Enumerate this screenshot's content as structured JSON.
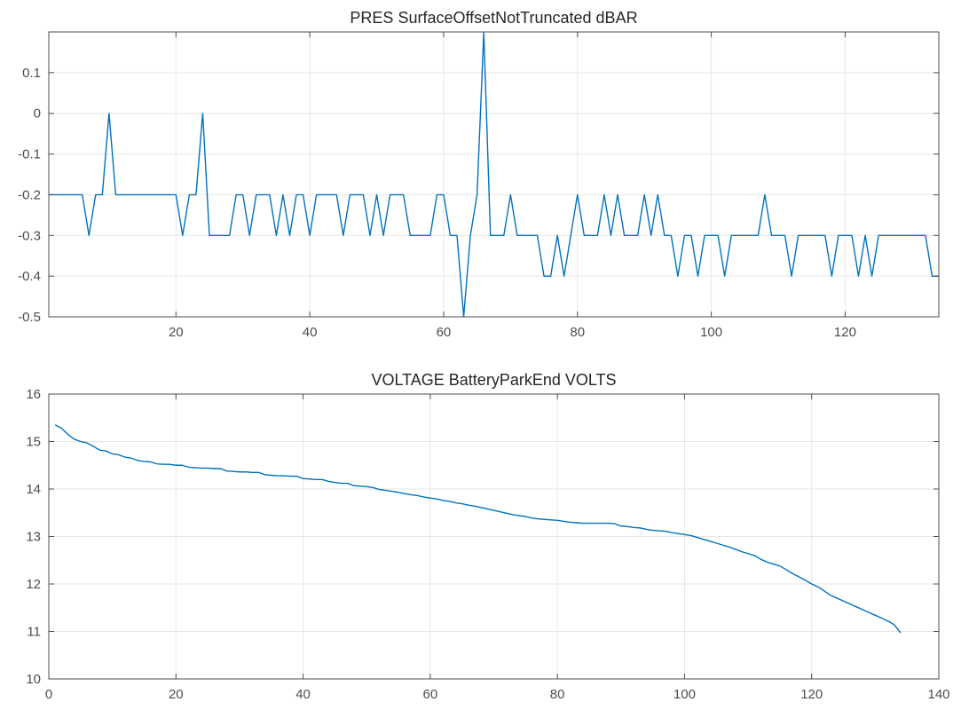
{
  "chart_data": [
    {
      "type": "line",
      "title": "PRES SurfaceOffsetNotTruncated dBAR",
      "xlabel": "",
      "ylabel": "",
      "xlim": [
        1,
        134
      ],
      "ylim": [
        -0.5,
        0.2
      ],
      "xticks": [
        20,
        40,
        60,
        80,
        100,
        120
      ],
      "xtick_labels": [
        "20",
        "40",
        "60",
        "80",
        "100",
        "120"
      ],
      "yticks": [
        -0.5,
        -0.4,
        -0.3,
        -0.2,
        -0.1,
        0,
        0.1
      ],
      "ytick_labels": [
        "-0.5",
        "-0.4",
        "-0.3",
        "-0.2",
        "-0.1",
        "0",
        "0.1"
      ],
      "grid": true,
      "color": "#0072bd",
      "series": [
        {
          "x": [
            1,
            2,
            3,
            4,
            5,
            6,
            7,
            8,
            9,
            10,
            11,
            12,
            13,
            14,
            15,
            16,
            17,
            18,
            19,
            20,
            21,
            22,
            23,
            24,
            25,
            26,
            27,
            28,
            29,
            30,
            31,
            32,
            33,
            34,
            35,
            36,
            37,
            38,
            39,
            40,
            41,
            42,
            43,
            44,
            45,
            46,
            47,
            48,
            49,
            50,
            51,
            52,
            53,
            54,
            55,
            56,
            57,
            58,
            59,
            60,
            61,
            62,
            63,
            64,
            65,
            66,
            67,
            68,
            69,
            70,
            71,
            72,
            73,
            74,
            75,
            76,
            77,
            78,
            79,
            80,
            81,
            82,
            83,
            84,
            85,
            86,
            87,
            88,
            89,
            90,
            91,
            92,
            93,
            94,
            95,
            96,
            97,
            98,
            99,
            100,
            101,
            102,
            103,
            104,
            105,
            106,
            107,
            108,
            109,
            110,
            111,
            112,
            113,
            114,
            115,
            116,
            117,
            118,
            119,
            120,
            121,
            122,
            123,
            124,
            125,
            126,
            127,
            128,
            129,
            130,
            131,
            132,
            133,
            134
          ],
          "values": [
            -0.2,
            -0.2,
            -0.2,
            -0.2,
            -0.2,
            -0.2,
            -0.3,
            -0.2,
            -0.2,
            0,
            -0.2,
            -0.2,
            -0.2,
            -0.2,
            -0.2,
            -0.2,
            -0.2,
            -0.2,
            -0.2,
            -0.2,
            -0.3,
            -0.2,
            -0.2,
            0,
            -0.3,
            -0.3,
            -0.3,
            -0.3,
            -0.2,
            -0.2,
            -0.3,
            -0.2,
            -0.2,
            -0.2,
            -0.3,
            -0.2,
            -0.3,
            -0.2,
            -0.2,
            -0.3,
            -0.2,
            -0.2,
            -0.2,
            -0.2,
            -0.3,
            -0.2,
            -0.2,
            -0.2,
            -0.3,
            -0.2,
            -0.3,
            -0.2,
            -0.2,
            -0.2,
            -0.3,
            -0.3,
            -0.3,
            -0.3,
            -0.2,
            -0.2,
            -0.3,
            -0.3,
            -0.5,
            -0.3,
            -0.2,
            0.2,
            -0.3,
            -0.3,
            -0.3,
            -0.2,
            -0.3,
            -0.3,
            -0.3,
            -0.3,
            -0.4,
            -0.4,
            -0.3,
            -0.4,
            -0.3,
            -0.2,
            -0.3,
            -0.3,
            -0.3,
            -0.2,
            -0.3,
            -0.2,
            -0.3,
            -0.3,
            -0.3,
            -0.2,
            -0.3,
            -0.2,
            -0.3,
            -0.3,
            -0.4,
            -0.3,
            -0.3,
            -0.4,
            -0.3,
            -0.3,
            -0.3,
            -0.4,
            -0.3,
            -0.3,
            -0.3,
            -0.3,
            -0.3,
            -0.2,
            -0.3,
            -0.3,
            -0.3,
            -0.4,
            -0.3,
            -0.3,
            -0.3,
            -0.3,
            -0.3,
            -0.4,
            -0.3,
            -0.3,
            -0.3,
            -0.4,
            -0.3,
            -0.4,
            -0.3,
            -0.3,
            -0.3,
            -0.3,
            -0.3,
            -0.3,
            -0.3,
            -0.3,
            -0.4,
            -0.4
          ]
        }
      ]
    },
    {
      "type": "line",
      "title": "VOLTAGE BatteryParkEnd VOLTS",
      "xlabel": "",
      "ylabel": "",
      "xlim": [
        0,
        140
      ],
      "ylim": [
        10,
        16
      ],
      "xticks": [
        0,
        20,
        40,
        60,
        80,
        100,
        120,
        140
      ],
      "xtick_labels": [
        "0",
        "20",
        "40",
        "60",
        "80",
        "100",
        "120",
        "140"
      ],
      "yticks": [
        10,
        11,
        12,
        13,
        14,
        15,
        16
      ],
      "ytick_labels": [
        "10",
        "11",
        "12",
        "13",
        "14",
        "15",
        "16"
      ],
      "grid": true,
      "color": "#0072bd",
      "series": [
        {
          "x": [
            1,
            2,
            3,
            4,
            5,
            6,
            7,
            8,
            9,
            10,
            11,
            12,
            13,
            14,
            15,
            16,
            17,
            18,
            19,
            20,
            21,
            22,
            23,
            24,
            25,
            26,
            27,
            28,
            29,
            30,
            31,
            32,
            33,
            34,
            35,
            36,
            37,
            38,
            39,
            40,
            41,
            42,
            43,
            44,
            45,
            46,
            47,
            48,
            49,
            50,
            51,
            52,
            53,
            54,
            55,
            56,
            57,
            58,
            59,
            60,
            61,
            62,
            63,
            64,
            65,
            66,
            67,
            68,
            69,
            70,
            71,
            72,
            73,
            74,
            75,
            76,
            77,
            78,
            79,
            80,
            81,
            82,
            83,
            84,
            85,
            86,
            87,
            88,
            89,
            90,
            91,
            92,
            93,
            94,
            95,
            96,
            97,
            98,
            99,
            100,
            101,
            102,
            103,
            104,
            105,
            106,
            107,
            108,
            109,
            110,
            111,
            112,
            113,
            114,
            115,
            116,
            117,
            118,
            119,
            120,
            121,
            122,
            123,
            124,
            125,
            126,
            127,
            128,
            129,
            130,
            131,
            132,
            133,
            134
          ],
          "values": [
            15.35,
            15.28,
            15.15,
            15.05,
            15.0,
            14.97,
            14.9,
            14.82,
            14.8,
            14.74,
            14.72,
            14.67,
            14.65,
            14.6,
            14.58,
            14.57,
            14.53,
            14.52,
            14.52,
            14.5,
            14.5,
            14.46,
            14.45,
            14.44,
            14.44,
            14.43,
            14.43,
            14.38,
            14.37,
            14.36,
            14.36,
            14.35,
            14.35,
            14.3,
            14.29,
            14.28,
            14.28,
            14.27,
            14.27,
            14.22,
            14.21,
            14.2,
            14.2,
            14.16,
            14.14,
            14.12,
            14.12,
            14.07,
            14.06,
            14.05,
            14.03,
            13.99,
            13.97,
            13.95,
            13.93,
            13.9,
            13.88,
            13.86,
            13.83,
            13.81,
            13.79,
            13.76,
            13.74,
            13.71,
            13.69,
            13.66,
            13.64,
            13.61,
            13.58,
            13.55,
            13.52,
            13.49,
            13.46,
            13.44,
            13.42,
            13.39,
            13.37,
            13.36,
            13.35,
            13.34,
            13.32,
            13.3,
            13.29,
            13.28,
            13.28,
            13.28,
            13.28,
            13.28,
            13.27,
            13.22,
            13.21,
            13.19,
            13.18,
            13.15,
            13.13,
            13.12,
            13.11,
            13.08,
            13.06,
            13.04,
            13.02,
            12.98,
            12.94,
            12.9,
            12.86,
            12.82,
            12.78,
            12.73,
            12.68,
            12.64,
            12.6,
            12.52,
            12.46,
            12.42,
            12.38,
            12.3,
            12.22,
            12.15,
            12.08,
            12.0,
            11.94,
            11.85,
            11.76,
            11.7,
            11.64,
            11.58,
            11.52,
            11.46,
            11.4,
            11.34,
            11.28,
            11.22,
            11.14,
            10.97
          ]
        }
      ]
    }
  ]
}
